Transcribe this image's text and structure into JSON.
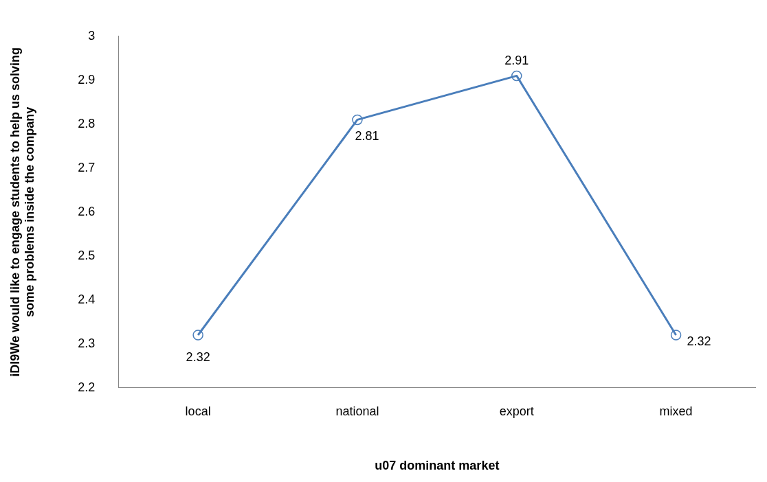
{
  "chart_data": {
    "type": "line",
    "xlabel": "u07 dominant market",
    "ylabel": "iDI9We would like to engage students to help us solving some problems inside the company",
    "categories": [
      "local",
      "national",
      "export",
      "mixed"
    ],
    "series": [
      {
        "color": "#4a7ebb",
        "values": [
          2.32,
          2.81,
          2.91,
          2.32
        ]
      }
    ],
    "ylim": [
      2.2,
      3
    ],
    "yticks": [
      2.2,
      2.3,
      2.4,
      2.5,
      2.6,
      2.7,
      2.8,
      2.9,
      3
    ],
    "grid": false,
    "legend": false,
    "marker": "circle",
    "line_style": "solid",
    "data_labels": true
  }
}
